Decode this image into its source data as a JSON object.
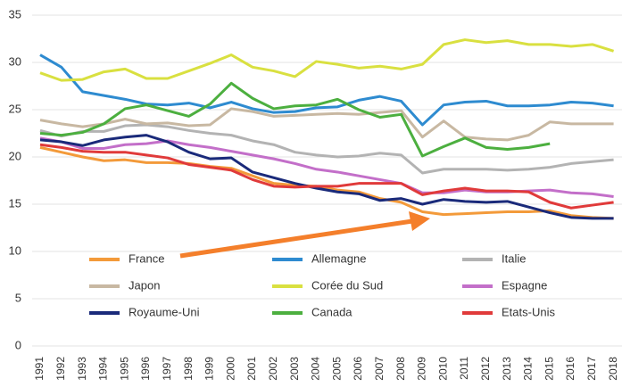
{
  "chart_data": {
    "type": "line",
    "categories": [
      "1991",
      "1992",
      "1993",
      "1994",
      "1995",
      "1996",
      "1997",
      "1998",
      "1999",
      "2000",
      "2001",
      "2002",
      "2003",
      "2004",
      "2005",
      "2006",
      "2007",
      "2008",
      "2009",
      "2010",
      "2011",
      "2012",
      "2013",
      "2014",
      "2015",
      "2016",
      "2017",
      "2018"
    ],
    "ylim": [
      0,
      35
    ],
    "yticks": [
      0,
      5,
      10,
      15,
      20,
      25,
      30,
      35
    ],
    "grid": true,
    "series": [
      {
        "name": "France",
        "color": "#f39a3a",
        "values": [
          21,
          20.5,
          20,
          19.6,
          19.7,
          19.4,
          19.4,
          19.3,
          19,
          18.8,
          18,
          17.2,
          17,
          16.9,
          16.5,
          16.3,
          15.6,
          15.2,
          14.2,
          13.9,
          14,
          14.1,
          14.2,
          14.2,
          14.3,
          13.8,
          13.6,
          13.5
        ]
      },
      {
        "name": "Allemagne",
        "color": "#2e8bd0",
        "values": [
          30.8,
          29.5,
          26.9,
          26.5,
          26.1,
          25.6,
          25.5,
          25.7,
          25.2,
          25.8,
          25.1,
          24.7,
          24.8,
          25.2,
          25.3,
          26,
          26.4,
          25.9,
          23.4,
          25.5,
          25.8,
          25.9,
          25.4,
          25.4,
          25.5,
          25.8,
          25.7,
          25.4
        ]
      },
      {
        "name": "Italie",
        "color": "#b3b3b3",
        "values": [
          22.8,
          22.2,
          22.7,
          22.7,
          23.3,
          23.4,
          23.2,
          22.8,
          22.5,
          22.3,
          21.7,
          21.3,
          20.5,
          20.2,
          20,
          20.1,
          20.4,
          20.2,
          18.3,
          18.7,
          18.7,
          18.7,
          18.6,
          18.7,
          18.9,
          19.3,
          19.5,
          19.7
        ]
      },
      {
        "name": "Japon",
        "color": "#c8b8a2",
        "values": [
          23.9,
          23.5,
          23.2,
          23.5,
          24,
          23.5,
          23.6,
          23.3,
          23.4,
          25.1,
          24.8,
          24.3,
          24.4,
          24.5,
          24.6,
          24.5,
          24.7,
          24.9,
          22.1,
          23.8,
          22.1,
          21.9,
          21.8,
          22.3,
          23.7,
          23.5,
          23.5,
          23.5
        ]
      },
      {
        "name": "Corée du Sud",
        "color": "#d9e040",
        "values": [
          28.9,
          28.1,
          28.2,
          29,
          29.3,
          28.3,
          28.3,
          29.1,
          29.9,
          30.8,
          29.5,
          29.1,
          28.5,
          30.1,
          29.8,
          29.4,
          29.6,
          29.3,
          29.8,
          31.9,
          32.4,
          32.1,
          32.3,
          31.9,
          31.9,
          31.7,
          31.9,
          31.2
        ]
      },
      {
        "name": "Espagne",
        "color": "#c36fc9",
        "values": [
          22,
          21.6,
          20.9,
          20.9,
          21.3,
          21.4,
          21.7,
          21.3,
          21,
          20.6,
          20.2,
          19.8,
          19.3,
          18.7,
          18.4,
          18,
          17.6,
          17.2,
          16.2,
          16.2,
          16.5,
          16.3,
          16.3,
          16.4,
          16.5,
          16.2,
          16.1,
          15.8
        ]
      },
      {
        "name": "Royaume-Uni",
        "color": "#1a2a7a",
        "values": [
          21.8,
          21.6,
          21.2,
          21.8,
          22.1,
          22.3,
          21.6,
          20.5,
          19.8,
          19.9,
          18.4,
          17.8,
          17.2,
          16.7,
          16.3,
          16.1,
          15.4,
          15.6,
          15,
          15.5,
          15.3,
          15.2,
          15.3,
          14.7,
          14.1,
          13.6,
          13.5,
          13.5
        ]
      },
      {
        "name": "Canada",
        "color": "#4caf3f",
        "values": [
          22.5,
          22.3,
          22.6,
          23.5,
          25.1,
          25.5,
          24.9,
          24.3,
          25.6,
          27.8,
          26.2,
          25.1,
          25.4,
          25.5,
          26.1,
          25,
          24.2,
          24.5,
          20.1,
          21.1,
          22,
          21,
          20.8,
          21,
          21.4,
          null,
          null,
          null
        ]
      },
      {
        "name": "Etats-Unis",
        "color": "#e03a3a",
        "values": [
          21.3,
          21,
          20.6,
          20.5,
          20.5,
          20.2,
          19.9,
          19.2,
          18.9,
          18.6,
          17.6,
          16.9,
          16.8,
          16.9,
          16.9,
          17.2,
          17.2,
          17.2,
          16,
          16.4,
          16.7,
          16.4,
          16.4,
          16.3,
          15.2,
          14.6,
          14.9,
          15.2
        ]
      }
    ]
  }
}
